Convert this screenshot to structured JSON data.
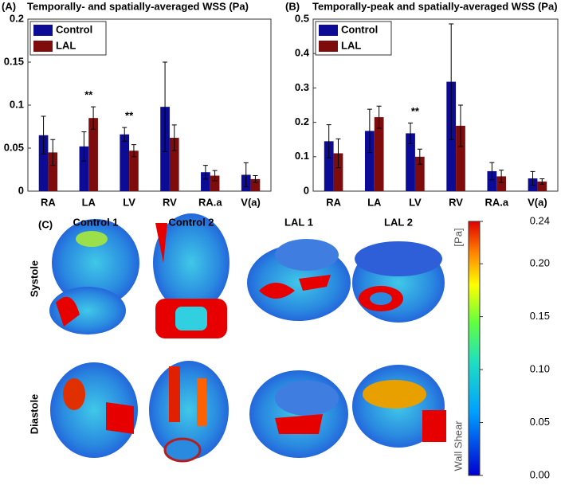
{
  "chart_data": [
    {
      "type": "bar",
      "panel_label": "(A)",
      "title": "Temporally- and spatially-averaged WSS (Pa)",
      "categories": [
        "RA",
        "LA",
        "LV",
        "RV",
        "RA.a",
        "V(a)"
      ],
      "series": [
        {
          "name": "Control",
          "color": "#0b0b96",
          "values": [
            0.065,
            0.052,
            0.066,
            0.098,
            0.022,
            0.019
          ],
          "errors": [
            0.022,
            0.017,
            0.008,
            0.052,
            0.008,
            0.014
          ]
        },
        {
          "name": "LAL",
          "color": "#7e0c0c",
          "values": [
            0.045,
            0.085,
            0.047,
            0.062,
            0.018,
            0.014
          ],
          "errors": [
            0.015,
            0.013,
            0.007,
            0.015,
            0.006,
            0.004
          ]
        }
      ],
      "significance": [
        null,
        "**",
        "**",
        null,
        null,
        null
      ],
      "ylim": [
        0,
        0.2
      ],
      "yticks": [
        0,
        0.05,
        0.1,
        0.15,
        0.2
      ],
      "legend": "upper-left"
    },
    {
      "type": "bar",
      "panel_label": "(B)",
      "title": "Temporally-peak and spatially-averaged WSS (Pa)",
      "categories": [
        "RA",
        "LA",
        "LV",
        "RV",
        "RA.a",
        "V(a)"
      ],
      "series": [
        {
          "name": "Control",
          "color": "#0b0b96",
          "values": [
            0.145,
            0.175,
            0.168,
            0.318,
            0.058,
            0.037
          ],
          "errors": [
            0.048,
            0.063,
            0.03,
            0.168,
            0.025,
            0.02
          ]
        },
        {
          "name": "LAL",
          "color": "#7e0c0c",
          "values": [
            0.11,
            0.215,
            0.1,
            0.19,
            0.043,
            0.028
          ],
          "errors": [
            0.042,
            0.032,
            0.022,
            0.06,
            0.018,
            0.008
          ]
        }
      ],
      "significance": [
        null,
        null,
        "**",
        null,
        null,
        null
      ],
      "ylim": [
        0,
        0.5
      ],
      "yticks": [
        0,
        0.1,
        0.2,
        0.3,
        0.4,
        0.5
      ],
      "legend": "upper-left"
    }
  ],
  "panel_c": {
    "panel_label": "(C)",
    "columns": [
      "Control 1",
      "Control 2",
      "LAL 1",
      "LAL 2"
    ],
    "rows": [
      "Systole",
      "Diastole"
    ],
    "colorbar": {
      "unit": "[Pa]",
      "label": "Wall Shear",
      "ylim": [
        0,
        0.24
      ],
      "yticks": [
        {
          "value": 0,
          "label": "0.00"
        },
        {
          "value": 0.05,
          "label": "0.05"
        },
        {
          "value": 0.1,
          "label": "0.10"
        },
        {
          "value": 0.15,
          "label": "0.15"
        },
        {
          "value": 0.2,
          "label": "0.20"
        },
        {
          "value": 0.24,
          "label": "0.24"
        }
      ]
    }
  }
}
